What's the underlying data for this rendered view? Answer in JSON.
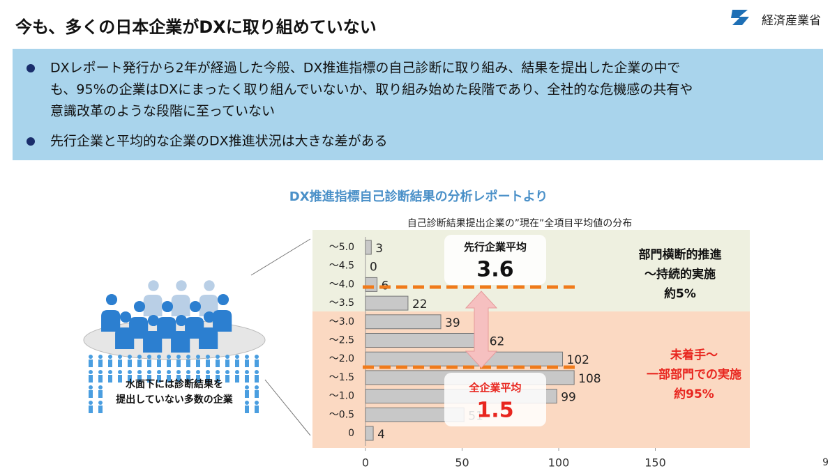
{
  "header": {
    "title": "今も、多くの日本企業がDXに取り組めていない",
    "logo": "経済産業省"
  },
  "bullets": [
    "DXレポート発行から2年が経過した今般、DX推進指標の自己診断に取り組み、結果を提出した企業の中で",
    "も、95%の企業はDXにまったく取り組んでいないか、取り組み始めた段階であり、全社的な危機感の共有や",
    "意識改革のような段階に至っていない",
    "先行企業と平均的な企業のDX推進状況は大きな差がある"
  ],
  "illustration": [
    "水面下には診断結果を",
    "提出していない多数の企業"
  ],
  "page_number": "9",
  "chart_data": {
    "type": "bar",
    "orientation": "horizontal",
    "title": "DX推進指標自己診断結果の分析レポートより",
    "subtitle": "自己診断結果提出企業の”現在”全項目平均値の分布",
    "categories": [
      "～5.0",
      "～4.5",
      "～4.0",
      "～3.5",
      "～3.0",
      "～2.5",
      "～2.0",
      "～1.5",
      "～1.0",
      "～0.5",
      "0"
    ],
    "values": [
      3,
      0,
      6,
      22,
      39,
      62,
      102,
      108,
      99,
      51,
      4
    ],
    "color": "#c8c8c8",
    "xlim": [
      0,
      200
    ],
    "xticks": [
      0,
      50,
      100,
      150
    ],
    "annotations": {
      "leader_label": "先行企業平均",
      "leader_value": "3.6",
      "all_label": "全企業平均",
      "all_value": "1.5",
      "top_zone": [
        "部門横断的推進",
        "～持続的実施",
        "約5%"
      ],
      "bottom_zone": [
        "未着手～",
        "一部部門での実施",
        "約95%"
      ]
    }
  }
}
